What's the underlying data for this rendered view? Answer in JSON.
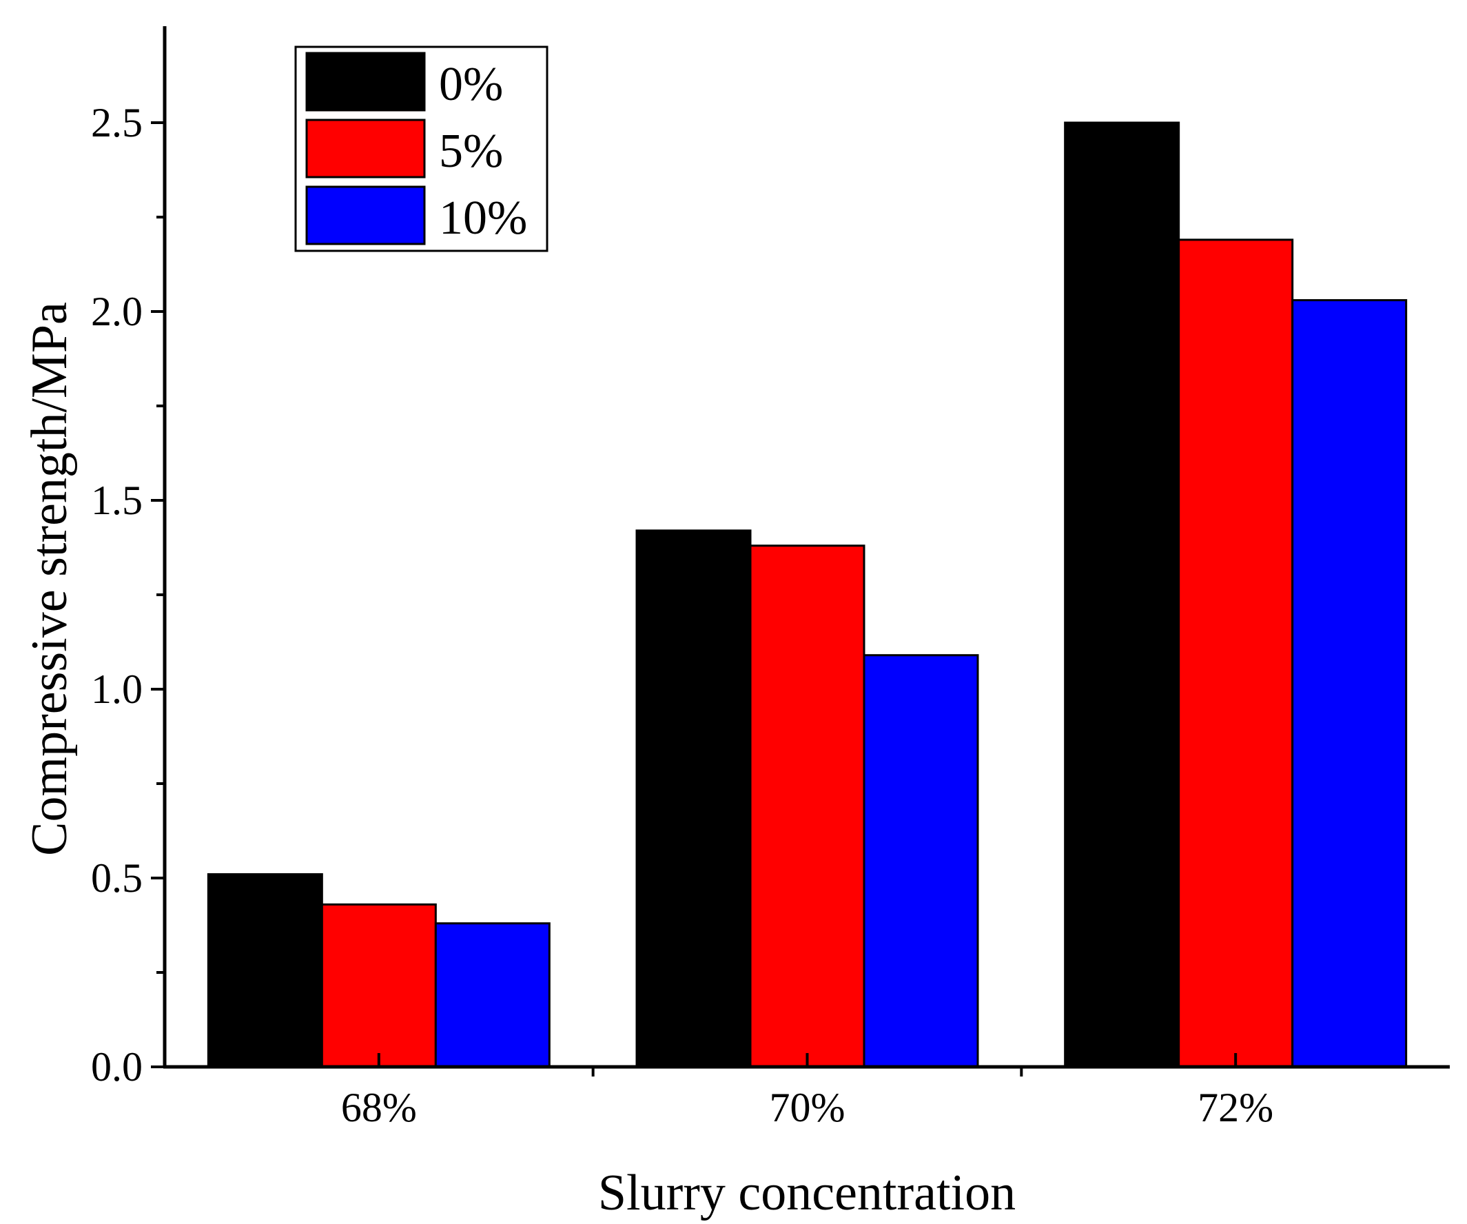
{
  "chart_data": {
    "type": "bar",
    "title": "",
    "xlabel": "Slurry concentration",
    "ylabel": "Compressive strength/MPa",
    "categories": [
      "68%",
      "70%",
      "72%"
    ],
    "series": [
      {
        "name": "0%",
        "color": "#000000",
        "values": [
          0.51,
          1.42,
          2.5
        ]
      },
      {
        "name": "5%",
        "color": "#ff0000",
        "values": [
          0.43,
          1.38,
          2.19
        ]
      },
      {
        "name": "10%",
        "color": "#0000ff",
        "values": [
          0.38,
          1.09,
          2.03
        ]
      }
    ],
    "ylim": [
      0,
      2.75
    ],
    "yticks": [
      "0.0",
      "0.5",
      "1.0",
      "1.5",
      "2.0",
      "2.5"
    ],
    "ytick_values": [
      0,
      0.5,
      1.0,
      1.5,
      2.0,
      2.5
    ],
    "yminor_step": 0.25,
    "grid": false,
    "legend_position": "top-left"
  }
}
